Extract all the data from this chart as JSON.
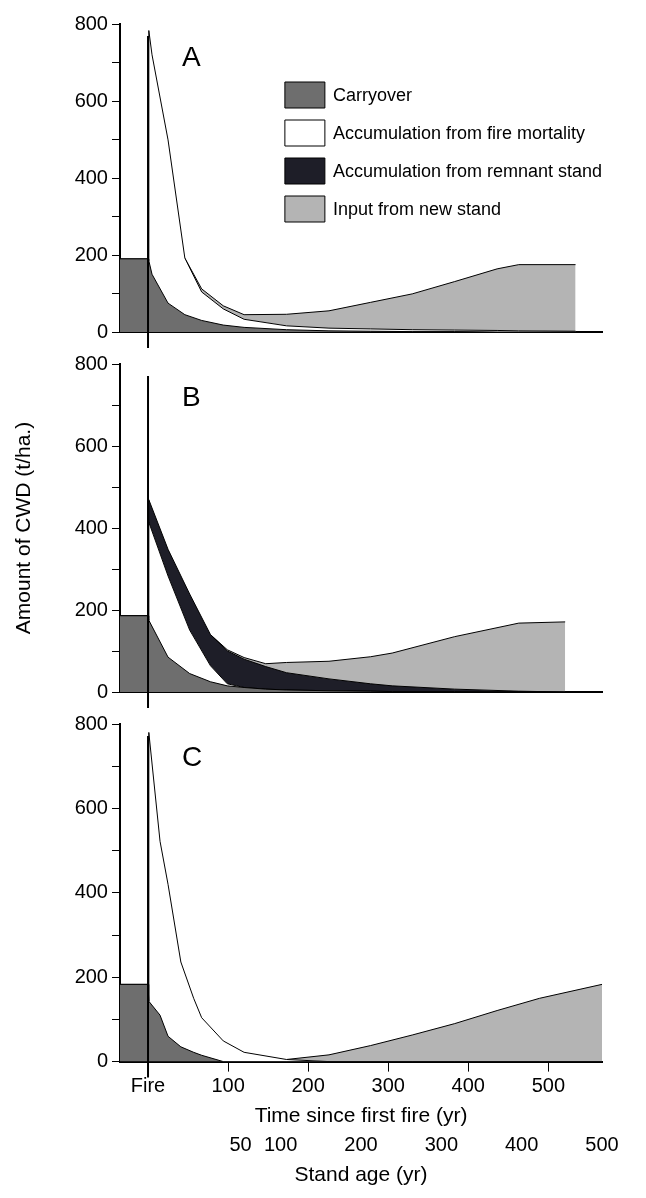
{
  "chart_data": [
    {
      "type": "area",
      "stacked": true,
      "annotations": [
        "A"
      ],
      "legend": "top right",
      "grid": false,
      "tick_labels": "y",
      "x": [
        -35,
        0,
        1,
        5,
        25,
        46,
        67,
        94,
        120,
        173,
        226,
        278,
        330,
        383,
        436,
        463,
        534
      ],
      "xlim": [
        -35,
        567
      ],
      "ylim": [
        0,
        800
      ],
      "yticks": [
        0,
        {
          "value": 100,
          "label": null
        },
        200,
        {
          "value": 300,
          "label": null
        },
        400,
        {
          "value": 500,
          "label": null
        },
        600,
        {
          "value": 700,
          "label": null
        },
        800
      ],
      "ref_lines": [
        {
          "axis": "x",
          "value": 0,
          "color": "#000000"
        }
      ],
      "series": [
        {
          "name": "Carryover",
          "color": "#6e6e6e",
          "values": [
            190,
            190,
            185,
            150,
            75,
            45,
            30,
            18,
            12,
            6,
            3,
            2,
            1,
            1,
            0,
            0,
            0
          ]
        },
        {
          "name": "Accumulation from fire mortality",
          "color": "#ffffff",
          "values": [
            0,
            0,
            598,
            570,
            424,
            147,
            74,
            42,
            21,
            10,
            7,
            6,
            5,
            4,
            4,
            3,
            2
          ]
        },
        {
          "name": "Accumulation from remnant stand",
          "color": "#1e1e28",
          "values": [
            null,
            null,
            null,
            null,
            null,
            null,
            null,
            null,
            null,
            null,
            null,
            null,
            null,
            null,
            null,
            null,
            null
          ]
        },
        {
          "name": "Input from new stand",
          "color": "#b4b4b4",
          "values": [
            null,
            null,
            null,
            null,
            null,
            0,
            8,
            8,
            12,
            30,
            45,
            69,
            93,
            126,
            160,
            172,
            173
          ]
        }
      ]
    },
    {
      "type": "area",
      "stacked": true,
      "annotations": [
        "B"
      ],
      "ylabel": "Amount of CWD (t/ha.)",
      "grid": false,
      "tick_labels": "y",
      "x": [
        -35,
        0,
        1,
        25,
        52,
        78,
        99,
        120,
        147,
        173,
        226,
        278,
        305,
        383,
        463,
        521
      ],
      "xlim": [
        -35,
        567
      ],
      "ylim": [
        0,
        800
      ],
      "yticks": [
        0,
        {
          "value": 100,
          "label": null
        },
        200,
        {
          "value": 300,
          "label": null
        },
        400,
        {
          "value": 500,
          "label": null
        },
        600,
        {
          "value": 700,
          "label": null
        },
        800
      ],
      "ref_lines": [
        {
          "axis": "x",
          "value": 0,
          "color": "#000000"
        }
      ],
      "series": [
        {
          "color": "#6e6e6e",
          "values": [
            186,
            186,
            175,
            85,
            45,
            25,
            15,
            11,
            7,
            5,
            3,
            2,
            1,
            1,
            0,
            0
          ]
        },
        {
          "color": "#ffffff",
          "values": [
            0,
            0,
            239,
            198,
            106,
            39,
            5,
            0,
            0,
            0,
            0,
            0,
            0,
            0,
            0,
            0
          ]
        },
        {
          "color": "#1e1e28",
          "values": [
            0,
            0,
            55,
            65,
            88,
            76,
            80,
            69,
            55,
            42,
            29,
            18,
            14,
            6,
            2,
            0
          ]
        },
        {
          "color": "#b4b4b4",
          "values": [
            null,
            null,
            null,
            null,
            null,
            0,
            3,
            4,
            7,
            25,
            43,
            66,
            80,
            128,
            166,
            171
          ]
        }
      ]
    },
    {
      "type": "area",
      "stacked": true,
      "annotations": [
        "C"
      ],
      "xlabel": "Time since first fire (yr)",
      "x2label": "Stand age (yr)",
      "grid": false,
      "x": [
        -35,
        0,
        1,
        15,
        25,
        41,
        57,
        67,
        94,
        120,
        173,
        226,
        278,
        330,
        383,
        436,
        489,
        567
      ],
      "xlim": [
        -35,
        567
      ],
      "xticks": [
        {
          "value": 0,
          "label": "Fire"
        },
        100,
        200,
        300,
        400,
        500
      ],
      "x2lim": [
        -100,
        500
      ],
      "x2ticks": [
        50,
        100,
        200,
        300,
        400,
        500
      ],
      "ylim": [
        0,
        800
      ],
      "yticks": [
        0,
        {
          "value": 100,
          "label": null
        },
        200,
        {
          "value": 300,
          "label": null
        },
        400,
        {
          "value": 500,
          "label": null
        },
        600,
        {
          "value": 700,
          "label": null
        },
        800
      ],
      "ref_lines": [
        {
          "axis": "x",
          "value": 0,
          "color": "#000000"
        }
      ],
      "series": [
        {
          "color": "#6e6e6e",
          "values": [
            183,
            183,
            143,
            110,
            60,
            35,
            22,
            15,
            0,
            0,
            0,
            0,
            0,
            0,
            0,
            0,
            0,
            0
          ]
        },
        {
          "color": "#ffffff",
          "values": [
            0,
            0,
            637,
            412,
            360,
            201,
            128,
            89,
            49,
            22,
            5,
            0,
            0,
            0,
            0,
            0,
            0,
            0
          ]
        },
        {
          "color": "#b4b4b4",
          "values": [
            null,
            null,
            null,
            null,
            null,
            null,
            null,
            null,
            null,
            null,
            0,
            16,
            38,
            63,
            90,
            121,
            150,
            183
          ]
        }
      ]
    }
  ]
}
